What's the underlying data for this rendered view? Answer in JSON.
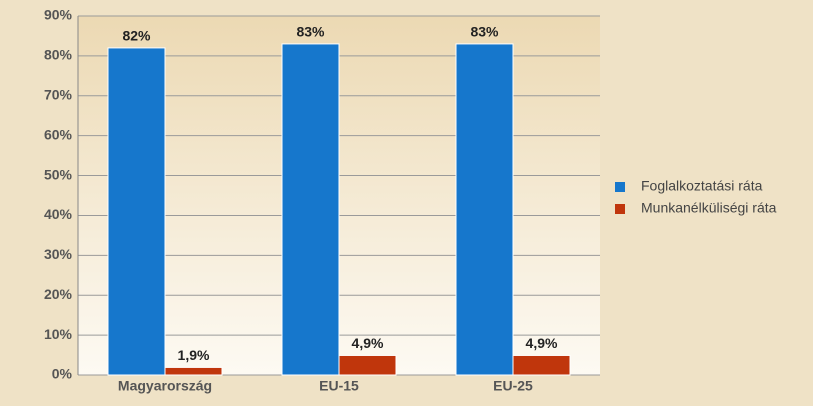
{
  "chart_data": {
    "type": "bar",
    "categories": [
      "Magyarország",
      "EU-15",
      "EU-25"
    ],
    "series": [
      {
        "name": "Foglalkoztatási ráta",
        "color": "#1677cc",
        "values": [
          82,
          83,
          83
        ],
        "value_labels": [
          "82%",
          "83%",
          "83%"
        ]
      },
      {
        "name": "Munkanélküliségi ráta",
        "color": "#c0360c",
        "values": [
          1.9,
          4.9,
          4.9
        ],
        "value_labels": [
          "1,9%",
          "4,9%",
          "4,9%"
        ]
      }
    ],
    "ylim": [
      0,
      90
    ],
    "yticks": [
      {
        "value": 0,
        "label": "0%"
      },
      {
        "value": 10,
        "label": "10%"
      },
      {
        "value": 20,
        "label": "20%"
      },
      {
        "value": 30,
        "label": "30%"
      },
      {
        "value": 40,
        "label": "40%"
      },
      {
        "value": 50,
        "label": "50%"
      },
      {
        "value": 60,
        "label": "60%"
      },
      {
        "value": 70,
        "label": "70%"
      },
      {
        "value": 80,
        "label": "80%"
      },
      {
        "value": 90,
        "label": "90%"
      }
    ],
    "grid": true,
    "legend": "right"
  }
}
